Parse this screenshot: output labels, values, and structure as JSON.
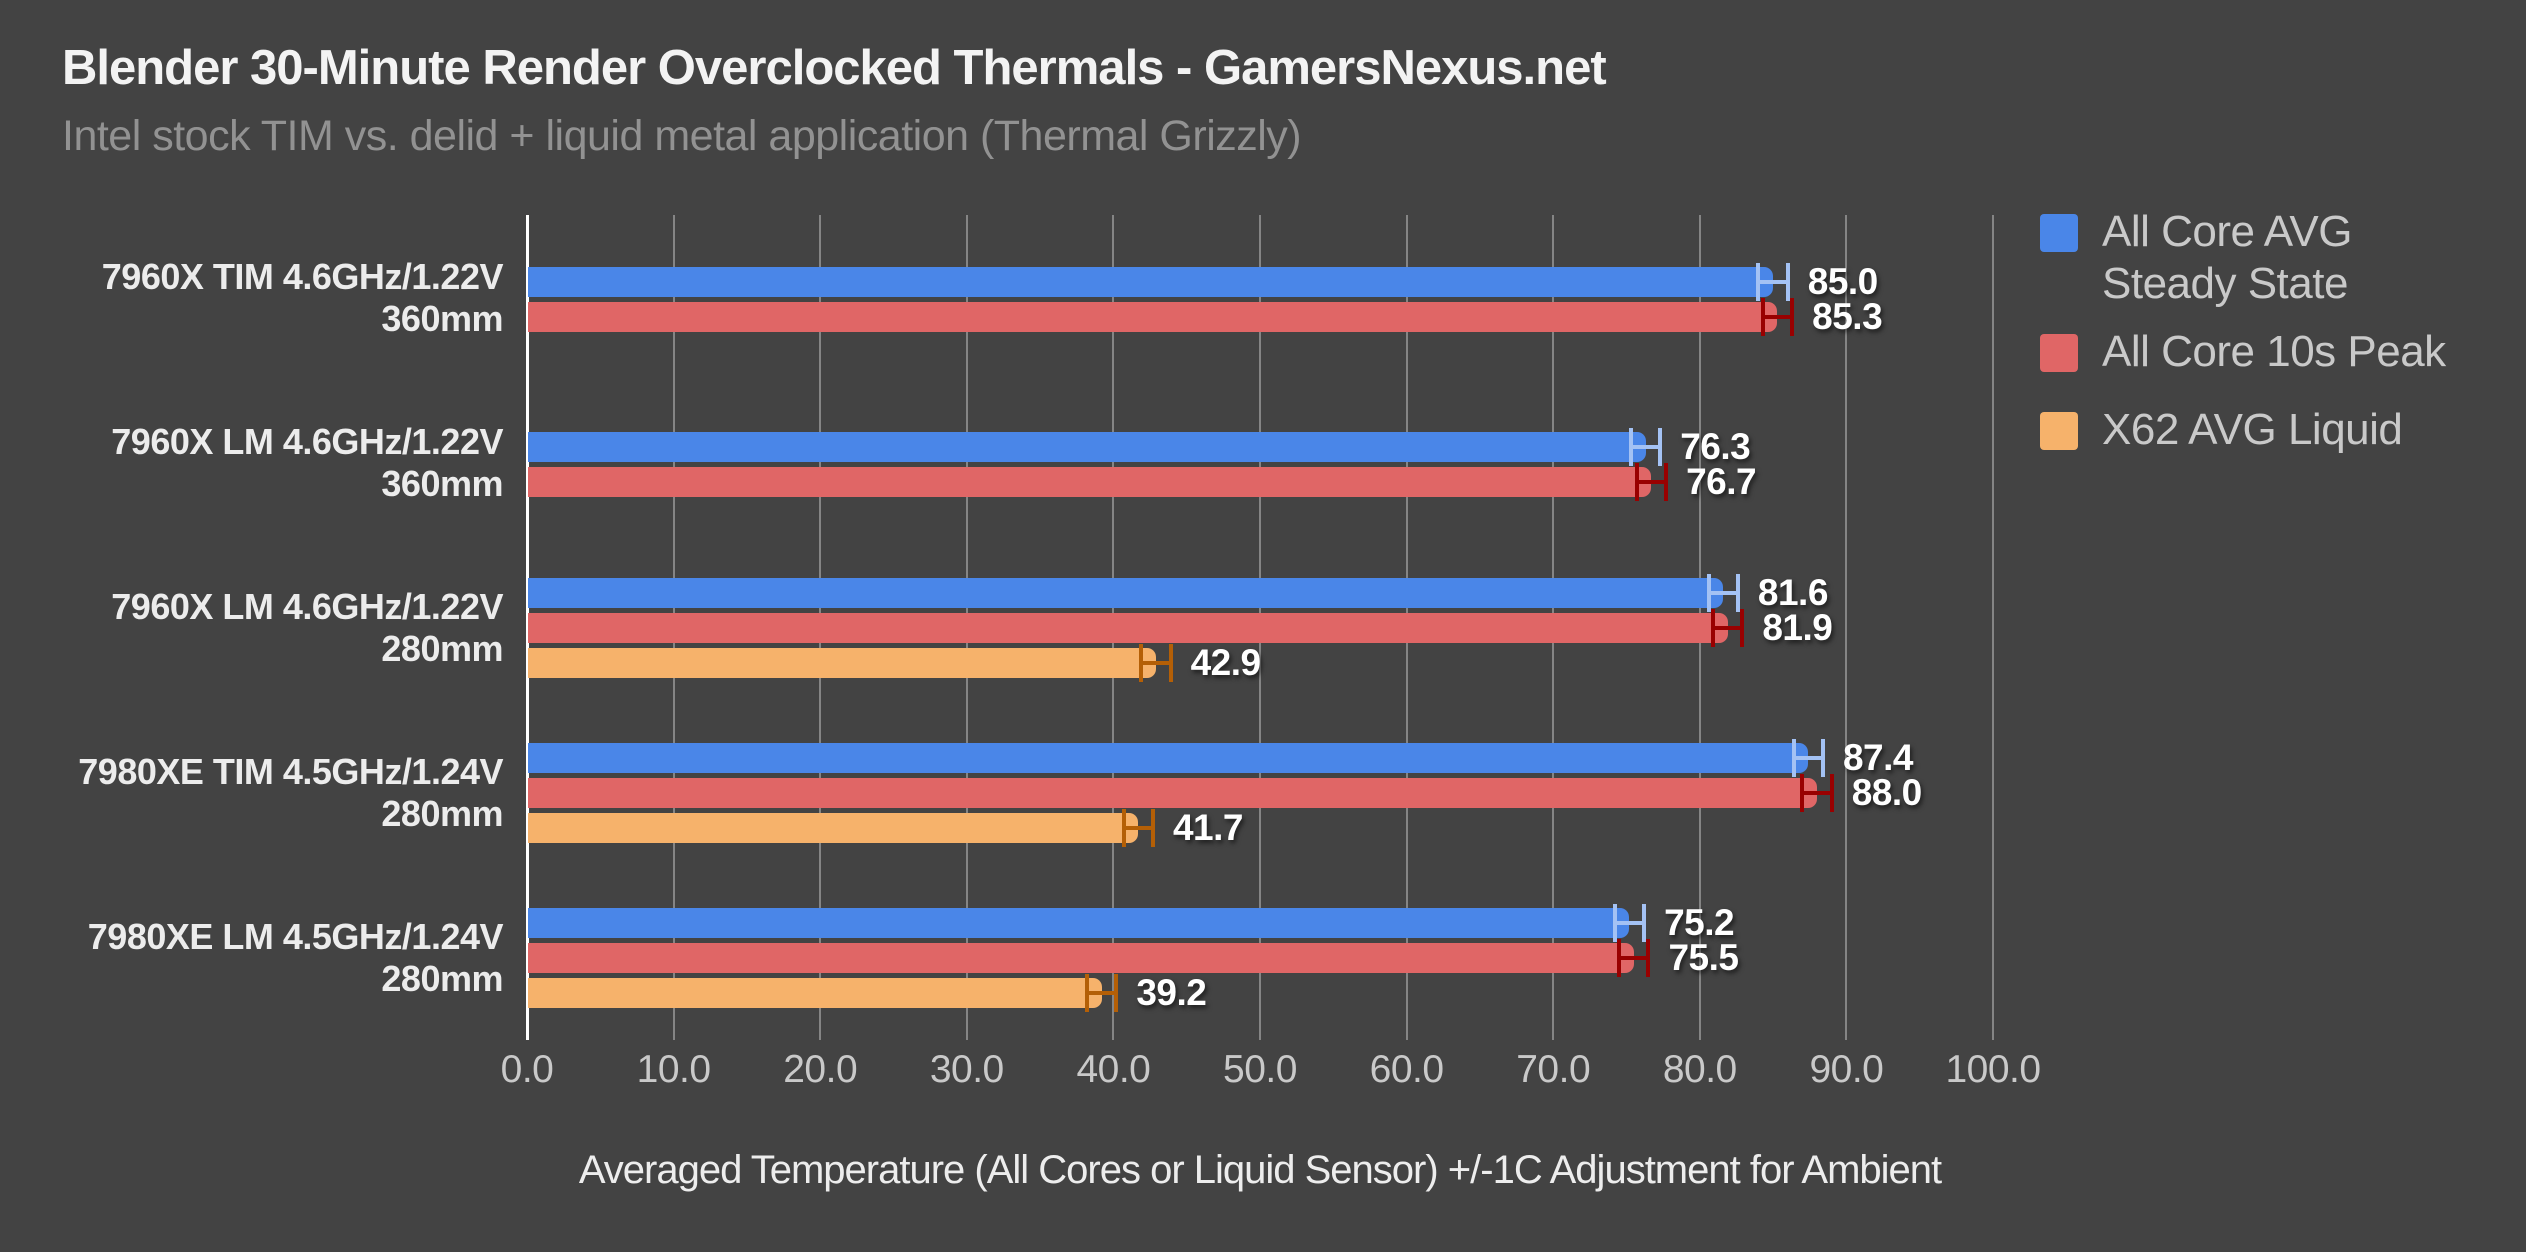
{
  "title": "Blender 30-Minute Render Overclocked Thermals - GamersNexus.net",
  "subtitle": "Intel stock TIM vs. delid + liquid metal application (Thermal Grizzly)",
  "colors": {
    "background": "#434343",
    "title_text": "#f3f3f3",
    "subtitle_text": "#929292",
    "gridline": "#858585",
    "axis_line": "#ffffff",
    "tick_text": "#c9c9c9",
    "category_text": "#ececec",
    "value_text": "#ffffff",
    "legend_text": "#c9c9c9",
    "bar_blue": "#4a86e8",
    "bar_red": "#e06666",
    "bar_orange": "#f6b26b",
    "error_blue": "#a4c2f4",
    "error_red": "#990000",
    "error_orange": "#b45f06"
  },
  "legend": {
    "items": [
      {
        "label": "All Core AVG\nSteady State",
        "color": "#4a86e8"
      },
      {
        "label": "All Core 10s Peak",
        "color": "#e06666"
      },
      {
        "label": "X62 AVG Liquid",
        "color": "#f6b26b"
      }
    ]
  },
  "chart_data": {
    "type": "bar",
    "orientation": "horizontal",
    "title": "Blender 30-Minute Render Overclocked Thermals - GamersNexus.net",
    "subtitle": "Intel stock TIM vs. delid + liquid metal application (Thermal Grizzly)",
    "categories": [
      [
        "7960X TIM 4.6GHz/1.22V",
        "360mm"
      ],
      [
        "7960X LM 4.6GHz/1.22V",
        "360mm"
      ],
      [
        "7960X LM 4.6GHz/1.22V",
        "280mm"
      ],
      [
        "7980XE TIM 4.5GHz/1.24V",
        "280mm"
      ],
      [
        "7980XE LM 4.5GHz/1.24V",
        "280mm"
      ]
    ],
    "series": [
      {
        "name": "All Core AVG Steady State",
        "color_key": "bar_blue",
        "error_color_key": "error_blue",
        "values": [
          85.0,
          76.3,
          81.6,
          87.4,
          75.2
        ]
      },
      {
        "name": "All Core 10s Peak",
        "color_key": "bar_red",
        "error_color_key": "error_red",
        "values": [
          85.3,
          76.7,
          81.9,
          88.0,
          75.5
        ]
      },
      {
        "name": "X62 AVG Liquid",
        "color_key": "bar_orange",
        "error_color_key": "error_orange",
        "values": [
          null,
          null,
          42.9,
          41.7,
          39.2
        ]
      }
    ],
    "error_bar_plus_minus": 1.0,
    "xlabel": "Averaged Temperature (All Cores or Liquid Sensor) +/-1C Adjustment for Ambient",
    "ylabel": "",
    "xlim": [
      0,
      100
    ],
    "xticks": [
      0,
      10,
      20,
      30,
      40,
      50,
      60,
      70,
      80,
      90,
      100
    ],
    "tick_format_decimals": 1,
    "grid": "vertical",
    "legend_position": "right"
  }
}
